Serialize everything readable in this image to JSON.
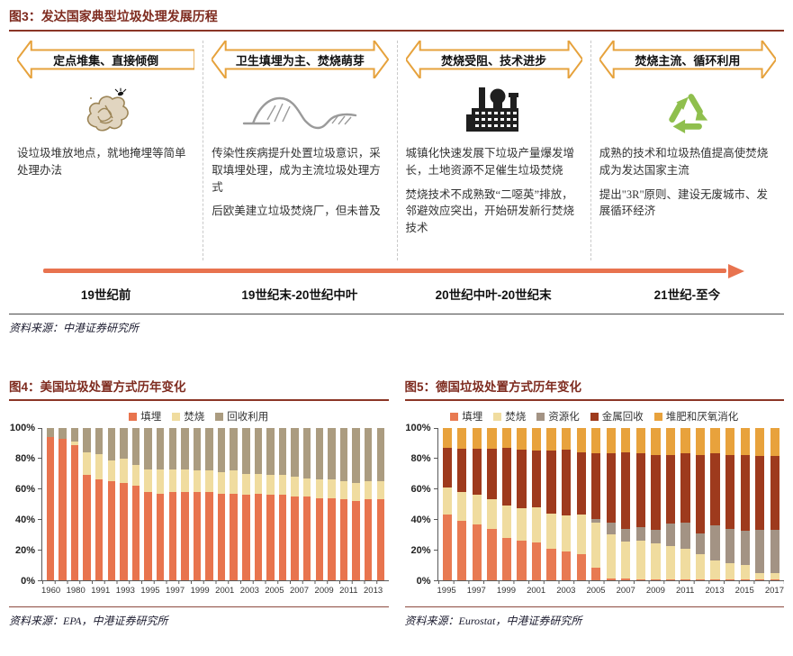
{
  "colors": {
    "title_maroon": "#7E2B1F",
    "rule_maroon": "#8B3626",
    "arrow_gold": "#E6A23C",
    "timeline_coral": "#E8734F",
    "axis_gray": "#595959",
    "recycle_green": "#8FBF4D"
  },
  "fig3": {
    "title": "图3：发达国家典型垃圾处理发展历程",
    "source": "资料来源：中港证券研究所",
    "stages": [
      {
        "banner": "定点堆集、直接倾倒",
        "icon": "trash-pile-icon",
        "paragraphs": [
          "设垃圾堆放地点，就地掩埋等简单处理办法"
        ],
        "period": "19世纪前"
      },
      {
        "banner": "卫生填埋为主、焚烧萌芽",
        "icon": "landfill-icon",
        "paragraphs": [
          "传染性疾病提升处置垃圾意识，采取填埋处理，成为主流垃圾处理方式",
          "后欧美建立垃圾焚烧厂，但未普及"
        ],
        "period": "19世纪末-20世纪中叶"
      },
      {
        "banner": "焚烧受阻、技术进步",
        "icon": "factory-icon",
        "paragraphs": [
          "城镇化快速发展下垃圾产量爆发增长，土地资源不足催生垃圾焚烧",
          "焚烧技术不成熟致“二噁英”排放，邻避效应突出，开始研发新行焚烧技术"
        ],
        "period": "20世纪中叶-20世纪末"
      },
      {
        "banner": "焚烧主流、循环利用",
        "icon": "recycle-icon",
        "paragraphs": [
          "成熟的技术和垃圾热值提高使焚烧成为发达国家主流",
          "提出\"3R\"原则、建设无废城市、发展循环经济"
        ],
        "period": "21世纪-至今"
      }
    ]
  },
  "fig4": {
    "title": "图4：美国垃圾处置方式历年变化",
    "source": "资料来源：EPA，中港证券研究所",
    "chart_index": 0
  },
  "fig5": {
    "title": "图5：德国垃圾处置方式历年变化",
    "source": "资料来源：Eurostat，中港证券研究所",
    "chart_index": 1
  },
  "chart_data": [
    {
      "type": "bar",
      "stacked": true,
      "title": "美国垃圾处置方式历年变化",
      "x": [
        "1960",
        "1970",
        "1980",
        "1990",
        "1991",
        "1992",
        "1993",
        "1994",
        "1995",
        "1996",
        "1997",
        "1998",
        "1999",
        "2000",
        "2001",
        "2002",
        "2003",
        "2004",
        "2005",
        "2006",
        "2007",
        "2008",
        "2009",
        "2010",
        "2011",
        "2012",
        "2013",
        "2014"
      ],
      "x_label_every": 2,
      "ylim": [
        0,
        100
      ],
      "yticks": [
        "0%",
        "20%",
        "40%",
        "60%",
        "80%",
        "100%"
      ],
      "legend_position": "top",
      "grid": false,
      "series": [
        {
          "name": "填埋",
          "color": "#E8744E",
          "values": [
            94,
            93,
            89,
            69,
            66,
            65,
            64,
            62,
            58,
            57,
            58,
            58,
            58,
            58,
            57,
            57,
            56,
            57,
            56,
            56,
            55,
            55,
            54,
            54,
            53,
            52,
            53,
            53
          ]
        },
        {
          "name": "焚烧",
          "color": "#F0DC9F",
          "values": [
            0,
            0,
            2,
            15,
            17,
            14,
            16,
            14,
            15,
            16,
            15,
            15,
            14,
            14,
            14,
            15,
            14,
            13,
            13,
            13,
            13,
            12,
            12,
            12,
            12,
            12,
            12,
            12
          ]
        },
        {
          "name": "回收利用",
          "color": "#AB9C80",
          "values": [
            6,
            7,
            9,
            16,
            17,
            21,
            20,
            24,
            27,
            27,
            27,
            27,
            28,
            28,
            29,
            28,
            30,
            30,
            31,
            31,
            32,
            33,
            34,
            34,
            35,
            36,
            35,
            35
          ]
        }
      ]
    },
    {
      "type": "bar",
      "stacked": true,
      "title": "德国垃圾处置方式历年变化",
      "x": [
        "1995",
        "1996",
        "1997",
        "1998",
        "1999",
        "2000",
        "2001",
        "2002",
        "2003",
        "2004",
        "2005",
        "2006",
        "2007",
        "2008",
        "2009",
        "2010",
        "2011",
        "2012",
        "2013",
        "2014",
        "2015",
        "2016",
        "2017"
      ],
      "x_label_every": 2,
      "ylim": [
        0,
        100
      ],
      "yticks": [
        "0%",
        "20%",
        "40%",
        "60%",
        "80%",
        "100%"
      ],
      "legend_position": "top",
      "grid": false,
      "series": [
        {
          "name": "填埋",
          "color": "#E87A52",
          "values": [
            43,
            39,
            36.5,
            34,
            28,
            26,
            25,
            21,
            19,
            17,
            8,
            1,
            1,
            0.5,
            0.5,
            0.5,
            0.5,
            0.5,
            0.5,
            0.5,
            0.5,
            0.5,
            0.5
          ]
        },
        {
          "name": "焚烧",
          "color": "#F0DC9F",
          "values": [
            18,
            19,
            19.5,
            19.5,
            21,
            21.5,
            23,
            23,
            23.5,
            26,
            30,
            29,
            24.5,
            25.5,
            23.5,
            22,
            20.5,
            16.5,
            12.5,
            11,
            9.5,
            4.5,
            4
          ]
        },
        {
          "name": "资源化",
          "color": "#A39384",
          "values": [
            0,
            0,
            0,
            0,
            0,
            0,
            0,
            0,
            0,
            0,
            2,
            8,
            8.5,
            9,
            9,
            14.5,
            17,
            14,
            23,
            22,
            22.5,
            28,
            28.5
          ]
        },
        {
          "name": "金属回收",
          "color": "#9E3A1D",
          "values": [
            26,
            28.5,
            30.5,
            33,
            38,
            38.5,
            37.5,
            41.5,
            43.5,
            41,
            43.5,
            45.5,
            50,
            48.5,
            49.5,
            45.5,
            45.5,
            51,
            47.5,
            49,
            50,
            48.5,
            48.5
          ]
        },
        {
          "name": "堆肥和厌氧消化",
          "color": "#E8A23C",
          "values": [
            13,
            13.5,
            13.5,
            13.5,
            13,
            14,
            14.5,
            14.5,
            14,
            16,
            16.5,
            16.5,
            16,
            16.5,
            17.5,
            17.5,
            16.5,
            18,
            16.5,
            17.5,
            17.5,
            18.5,
            18.5
          ]
        }
      ]
    }
  ]
}
